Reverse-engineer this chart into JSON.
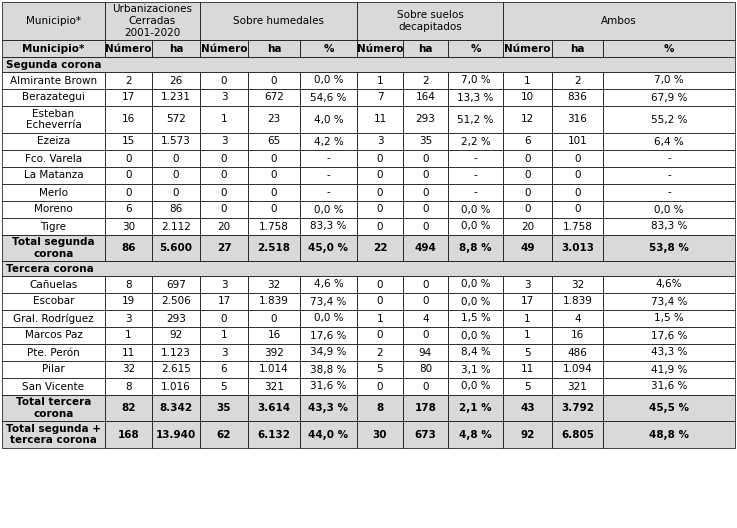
{
  "col_headers": [
    "Municipio*",
    "Número",
    "ha",
    "Número",
    "ha",
    "%",
    "Número",
    "ha",
    "%",
    "Número",
    "ha",
    "%"
  ],
  "section_segunda": "Segunda corona",
  "section_tercera": "Tercera corona",
  "rows_segunda": [
    [
      "Almirante Brown",
      "2",
      "26",
      "0",
      "0",
      "0,0 %",
      "1",
      "2",
      "7,0 %",
      "1",
      "2",
      "7,0 %"
    ],
    [
      "Berazategui",
      "17",
      "1.231",
      "3",
      "672",
      "54,6 %",
      "7",
      "164",
      "13,3 %",
      "10",
      "836",
      "67,9 %"
    ],
    [
      "Esteban\nEcheverría",
      "16",
      "572",
      "1",
      "23",
      "4,0 %",
      "11",
      "293",
      "51,2 %",
      "12",
      "316",
      "55,2 %"
    ],
    [
      "Ezeiza",
      "15",
      "1.573",
      "3",
      "65",
      "4,2 %",
      "3",
      "35",
      "2,2 %",
      "6",
      "101",
      "6,4 %"
    ],
    [
      "Fco. Varela",
      "0",
      "0",
      "0",
      "0",
      "-",
      "0",
      "0",
      "-",
      "0",
      "0",
      "-"
    ],
    [
      "La Matanza",
      "0",
      "0",
      "0",
      "0",
      "-",
      "0",
      "0",
      "-",
      "0",
      "0",
      "-"
    ],
    [
      "Merlo",
      "0",
      "0",
      "0",
      "0",
      "-",
      "0",
      "0",
      "-",
      "0",
      "0",
      "-"
    ],
    [
      "Moreno",
      "6",
      "86",
      "0",
      "0",
      "0,0 %",
      "0",
      "0",
      "0,0 %",
      "0",
      "0",
      "0,0 %"
    ],
    [
      "Tigre",
      "30",
      "2.112",
      "20",
      "1.758",
      "83,3 %",
      "0",
      "0",
      "0,0 %",
      "20",
      "1.758",
      "83,3 %"
    ]
  ],
  "total_segunda": [
    "Total segunda\ncorona",
    "86",
    "5.600",
    "27",
    "2.518",
    "45,0 %",
    "22",
    "494",
    "8,8 %",
    "49",
    "3.013",
    "53,8 %"
  ],
  "rows_tercera": [
    [
      "Cañuelas",
      "8",
      "697",
      "3",
      "32",
      "4,6 %",
      "0",
      "0",
      "0,0 %",
      "3",
      "32",
      "4,6%"
    ],
    [
      "Escobar",
      "19",
      "2.506",
      "17",
      "1.839",
      "73,4 %",
      "0",
      "0",
      "0,0 %",
      "17",
      "1.839",
      "73,4 %"
    ],
    [
      "Gral. Rodríguez",
      "3",
      "293",
      "0",
      "0",
      "0,0 %",
      "1",
      "4",
      "1,5 %",
      "1",
      "4",
      "1,5 %"
    ],
    [
      "Marcos Paz",
      "1",
      "92",
      "1",
      "16",
      "17,6 %",
      "0",
      "0",
      "0,0 %",
      "1",
      "16",
      "17,6 %"
    ],
    [
      "Pte. Perón",
      "11",
      "1.123",
      "3",
      "392",
      "34,9 %",
      "2",
      "94",
      "8,4 %",
      "5",
      "486",
      "43,3 %"
    ],
    [
      "Pilar",
      "32",
      "2.615",
      "6",
      "1.014",
      "38,8 %",
      "5",
      "80",
      "3,1 %",
      "11",
      "1.094",
      "41,9 %"
    ],
    [
      "San Vicente",
      "8",
      "1.016",
      "5",
      "321",
      "31,6 %",
      "0",
      "0",
      "0,0 %",
      "5",
      "321",
      "31,6 %"
    ]
  ],
  "total_tercera": [
    "Total tercera\ncorona",
    "82",
    "8.342",
    "35",
    "3.614",
    "43,3 %",
    "8",
    "178",
    "2,1 %",
    "43",
    "3.792",
    "45,5 %"
  ],
  "total_both": [
    "Total segunda +\ntercera corona",
    "168",
    "13.940",
    "62",
    "6.132",
    "44,0 %",
    "30",
    "673",
    "4,8 %",
    "92",
    "6.805",
    "48,8 %"
  ],
  "bg_header": "#d9d9d9",
  "bg_white": "#ffffff",
  "text_color": "#000000"
}
